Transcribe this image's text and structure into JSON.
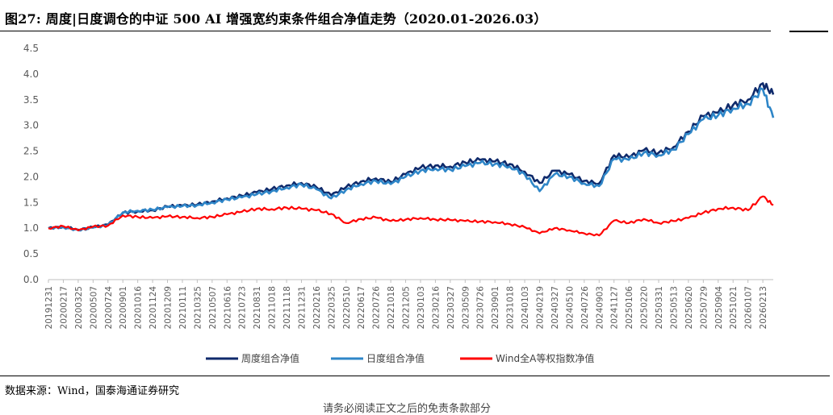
{
  "header": {
    "title": "图27: 周度|日度调仓的中证 500 AI 增强宽约束条件组合净值走势（2020.01-2026.03）"
  },
  "source": "数据来源：Wind，国泰海通证券研究",
  "footer": "请务必阅读正文之后的免责条款部分",
  "chart_data": {
    "type": "line",
    "ylim": [
      0.0,
      4.5
    ],
    "yticks": [
      "0.0",
      "0.5",
      "1.0",
      "1.5",
      "2.0",
      "2.5",
      "3.0",
      "3.5",
      "4.0",
      "4.5"
    ],
    "x_tick_labels": [
      "20191231",
      "20200217",
      "20200325",
      "20200507",
      "20200724",
      "20200901",
      "20201016",
      "20201124",
      "20201209",
      "20210111",
      "20210325",
      "20210507",
      "20210616",
      "20210723",
      "20210831",
      "20211018",
      "20211118",
      "20211231",
      "20220216",
      "20220325",
      "20220510",
      "20220617",
      "20220726",
      "20221018",
      "20221205",
      "20230103",
      "20230216",
      "20230327",
      "20230509",
      "20230726",
      "20230901",
      "20231018",
      "20240103",
      "20240219",
      "20240327",
      "20240510",
      "20240726",
      "20240903",
      "20241127",
      "20250106",
      "20250220",
      "20250331",
      "20250513",
      "20250620",
      "20250729",
      "20250904",
      "20251021",
      "20260107",
      "20260213"
    ],
    "series": [
      {
        "name": "周度组合净值",
        "color": "#0f2a6b",
        "points": [
          [
            0,
            1.0
          ],
          [
            1,
            1.03
          ],
          [
            2,
            0.97
          ],
          [
            3,
            1.02
          ],
          [
            4,
            1.07
          ],
          [
            5,
            1.3
          ],
          [
            6,
            1.33
          ],
          [
            7,
            1.35
          ],
          [
            8,
            1.42
          ],
          [
            9,
            1.44
          ],
          [
            10,
            1.46
          ],
          [
            11,
            1.52
          ],
          [
            12,
            1.58
          ],
          [
            13,
            1.63
          ],
          [
            14,
            1.7
          ],
          [
            15,
            1.76
          ],
          [
            16,
            1.83
          ],
          [
            17,
            1.88
          ],
          [
            18,
            1.8
          ],
          [
            19,
            1.64
          ],
          [
            20,
            1.8
          ],
          [
            21,
            1.91
          ],
          [
            22,
            1.97
          ],
          [
            23,
            1.9
          ],
          [
            24,
            2.05
          ],
          [
            25,
            2.18
          ],
          [
            26,
            2.22
          ],
          [
            27,
            2.2
          ],
          [
            28,
            2.28
          ],
          [
            29,
            2.33
          ],
          [
            30,
            2.3
          ],
          [
            31,
            2.25
          ],
          [
            32,
            2.1
          ],
          [
            33,
            1.88
          ],
          [
            34,
            2.12
          ],
          [
            35,
            2.05
          ],
          [
            36,
            1.92
          ],
          [
            37,
            1.87
          ],
          [
            38,
            2.42
          ],
          [
            39,
            2.38
          ],
          [
            40,
            2.52
          ],
          [
            41,
            2.47
          ],
          [
            42,
            2.58
          ],
          [
            43,
            2.88
          ],
          [
            44,
            3.18
          ],
          [
            45,
            3.25
          ],
          [
            46,
            3.4
          ],
          [
            47,
            3.5
          ],
          [
            48,
            3.82
          ],
          [
            48.7,
            3.6
          ]
        ]
      },
      {
        "name": "日度组合净值",
        "color": "#2e86c8",
        "points": [
          [
            0,
            1.0
          ],
          [
            1,
            1.02
          ],
          [
            2,
            0.96
          ],
          [
            3,
            1.01
          ],
          [
            4,
            1.06
          ],
          [
            5,
            1.31
          ],
          [
            6,
            1.34
          ],
          [
            7,
            1.36
          ],
          [
            8,
            1.41
          ],
          [
            9,
            1.43
          ],
          [
            10,
            1.45
          ],
          [
            11,
            1.5
          ],
          [
            12,
            1.56
          ],
          [
            13,
            1.6
          ],
          [
            14,
            1.66
          ],
          [
            15,
            1.72
          ],
          [
            16,
            1.79
          ],
          [
            17,
            1.85
          ],
          [
            18,
            1.76
          ],
          [
            19,
            1.58
          ],
          [
            20,
            1.75
          ],
          [
            21,
            1.86
          ],
          [
            22,
            1.92
          ],
          [
            23,
            1.86
          ],
          [
            24,
            2.0
          ],
          [
            25,
            2.12
          ],
          [
            26,
            2.16
          ],
          [
            27,
            2.14
          ],
          [
            28,
            2.21
          ],
          [
            29,
            2.27
          ],
          [
            30,
            2.25
          ],
          [
            31,
            2.2
          ],
          [
            32,
            2.05
          ],
          [
            33,
            1.72
          ],
          [
            34,
            2.05
          ],
          [
            35,
            2.0
          ],
          [
            36,
            1.87
          ],
          [
            37,
            1.82
          ],
          [
            38,
            2.35
          ],
          [
            39,
            2.33
          ],
          [
            40,
            2.47
          ],
          [
            41,
            2.42
          ],
          [
            42,
            2.53
          ],
          [
            43,
            2.83
          ],
          [
            44,
            3.12
          ],
          [
            45,
            3.2
          ],
          [
            46,
            3.33
          ],
          [
            47,
            3.42
          ],
          [
            48,
            3.7
          ],
          [
            48.7,
            3.15
          ]
        ]
      },
      {
        "name": "Wind全A等权指数净值",
        "color": "#ff0000",
        "points": [
          [
            0,
            1.0
          ],
          [
            1,
            1.04
          ],
          [
            2,
            0.96
          ],
          [
            3,
            1.03
          ],
          [
            4,
            1.05
          ],
          [
            5,
            1.25
          ],
          [
            6,
            1.22
          ],
          [
            7,
            1.2
          ],
          [
            8,
            1.23
          ],
          [
            9,
            1.22
          ],
          [
            10,
            1.2
          ],
          [
            11,
            1.22
          ],
          [
            12,
            1.27
          ],
          [
            13,
            1.32
          ],
          [
            14,
            1.38
          ],
          [
            15,
            1.37
          ],
          [
            16,
            1.4
          ],
          [
            17,
            1.38
          ],
          [
            18,
            1.35
          ],
          [
            19,
            1.28
          ],
          [
            20,
            1.1
          ],
          [
            21,
            1.18
          ],
          [
            22,
            1.21
          ],
          [
            23,
            1.14
          ],
          [
            24,
            1.17
          ],
          [
            25,
            1.2
          ],
          [
            26,
            1.17
          ],
          [
            27,
            1.16
          ],
          [
            28,
            1.14
          ],
          [
            29,
            1.13
          ],
          [
            30,
            1.12
          ],
          [
            31,
            1.08
          ],
          [
            32,
            1.02
          ],
          [
            33,
            0.9
          ],
          [
            34,
            1.0
          ],
          [
            35,
            0.96
          ],
          [
            36,
            0.9
          ],
          [
            37,
            0.86
          ],
          [
            38,
            1.15
          ],
          [
            39,
            1.1
          ],
          [
            40,
            1.18
          ],
          [
            41,
            1.1
          ],
          [
            42,
            1.14
          ],
          [
            43,
            1.2
          ],
          [
            44,
            1.3
          ],
          [
            45,
            1.38
          ],
          [
            46,
            1.4
          ],
          [
            47,
            1.35
          ],
          [
            48,
            1.62
          ],
          [
            48.7,
            1.45
          ]
        ]
      }
    ],
    "legend_position": "bottom",
    "grid": false
  }
}
